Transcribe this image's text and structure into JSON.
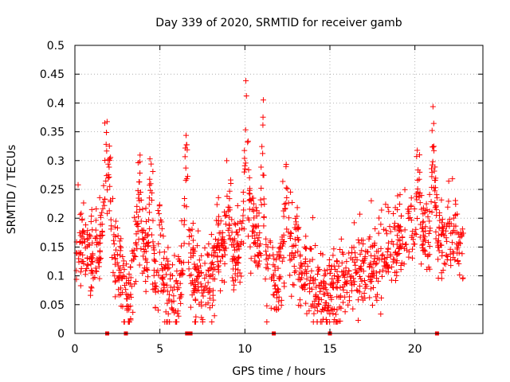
{
  "chart_data": {
    "type": "scatter",
    "title": "Day 339 of 2020, SRMTID for receiver gamb",
    "xlabel": "GPS time / hours",
    "ylabel": "SRMTID / TECUs",
    "xlim": [
      0,
      24
    ],
    "ylim": [
      0,
      0.5
    ],
    "grid": true,
    "marker": "+",
    "colors": {
      "points": "#ff0000",
      "grid": "#a0a0a0",
      "axis": "#000000"
    },
    "x_ticks": [
      {
        "value": 0,
        "label": "0"
      },
      {
        "value": 5,
        "label": "5"
      },
      {
        "value": 10,
        "label": "10"
      },
      {
        "value": 15,
        "label": "15"
      },
      {
        "value": 20,
        "label": "20"
      }
    ],
    "y_ticks": [
      {
        "value": 0,
        "label": "0"
      },
      {
        "value": 0.05,
        "label": "0.05"
      },
      {
        "value": 0.1,
        "label": "0.1"
      },
      {
        "value": 0.15,
        "label": "0.15"
      },
      {
        "value": 0.2,
        "label": "0.2"
      },
      {
        "value": 0.25,
        "label": "0.25"
      },
      {
        "value": 0.3,
        "label": "0.3"
      },
      {
        "value": 0.35,
        "label": "0.35"
      },
      {
        "value": 0.4,
        "label": "0.4"
      },
      {
        "value": 0.45,
        "label": "0.45"
      },
      {
        "value": 0.5,
        "label": "0.5"
      }
    ],
    "zero_markers_x": [
      1.9,
      3.0,
      6.6,
      6.8,
      11.7,
      15.0,
      21.3
    ],
    "envelope": [
      [
        0.0,
        0.13
      ],
      [
        0.5,
        0.15
      ],
      [
        1.0,
        0.13
      ],
      [
        1.5,
        0.15
      ],
      [
        1.9,
        0.24
      ],
      [
        2.3,
        0.15
      ],
      [
        2.7,
        0.1
      ],
      [
        3.2,
        0.06
      ],
      [
        3.7,
        0.16
      ],
      [
        4.2,
        0.13
      ],
      [
        4.7,
        0.1
      ],
      [
        5.3,
        0.08
      ],
      [
        5.9,
        0.07
      ],
      [
        6.4,
        0.13
      ],
      [
        6.9,
        0.12
      ],
      [
        7.4,
        0.07
      ],
      [
        7.9,
        0.09
      ],
      [
        8.4,
        0.14
      ],
      [
        8.9,
        0.15
      ],
      [
        9.4,
        0.13
      ],
      [
        9.8,
        0.17
      ],
      [
        10.3,
        0.18
      ],
      [
        10.8,
        0.15
      ],
      [
        11.3,
        0.1
      ],
      [
        11.8,
        0.09
      ],
      [
        12.3,
        0.14
      ],
      [
        12.8,
        0.14
      ],
      [
        13.3,
        0.09
      ],
      [
        13.8,
        0.1
      ],
      [
        14.3,
        0.07
      ],
      [
        14.8,
        0.06
      ],
      [
        15.3,
        0.07
      ],
      [
        15.8,
        0.09
      ],
      [
        16.3,
        0.11
      ],
      [
        16.8,
        0.11
      ],
      [
        17.3,
        0.12
      ],
      [
        17.8,
        0.12
      ],
      [
        18.3,
        0.14
      ],
      [
        18.8,
        0.15
      ],
      [
        19.3,
        0.16
      ],
      [
        19.8,
        0.18
      ],
      [
        20.2,
        0.2
      ],
      [
        20.6,
        0.16
      ],
      [
        21.0,
        0.19
      ],
      [
        21.5,
        0.15
      ],
      [
        22.0,
        0.17
      ],
      [
        22.5,
        0.17
      ],
      [
        22.9,
        0.12
      ]
    ],
    "bursts": [
      {
        "x": 1.85,
        "w": 0.25,
        "a": 0.15
      },
      {
        "x": 3.8,
        "w": 0.2,
        "a": 0.12
      },
      {
        "x": 4.45,
        "w": 0.12,
        "a": 0.22
      },
      {
        "x": 5.0,
        "w": 0.15,
        "a": 0.12
      },
      {
        "x": 6.55,
        "w": 0.12,
        "a": 0.22
      },
      {
        "x": 9.1,
        "w": 0.15,
        "a": 0.13
      },
      {
        "x": 10.1,
        "w": 0.15,
        "a": 0.24
      },
      {
        "x": 11.05,
        "w": 0.12,
        "a": 0.28
      },
      {
        "x": 12.45,
        "w": 0.15,
        "a": 0.18
      },
      {
        "x": 13.1,
        "w": 0.12,
        "a": 0.1
      },
      {
        "x": 20.2,
        "w": 0.2,
        "a": 0.1
      },
      {
        "x": 21.1,
        "w": 0.15,
        "a": 0.17
      }
    ],
    "n_points": 1600,
    "seed": 339
  }
}
